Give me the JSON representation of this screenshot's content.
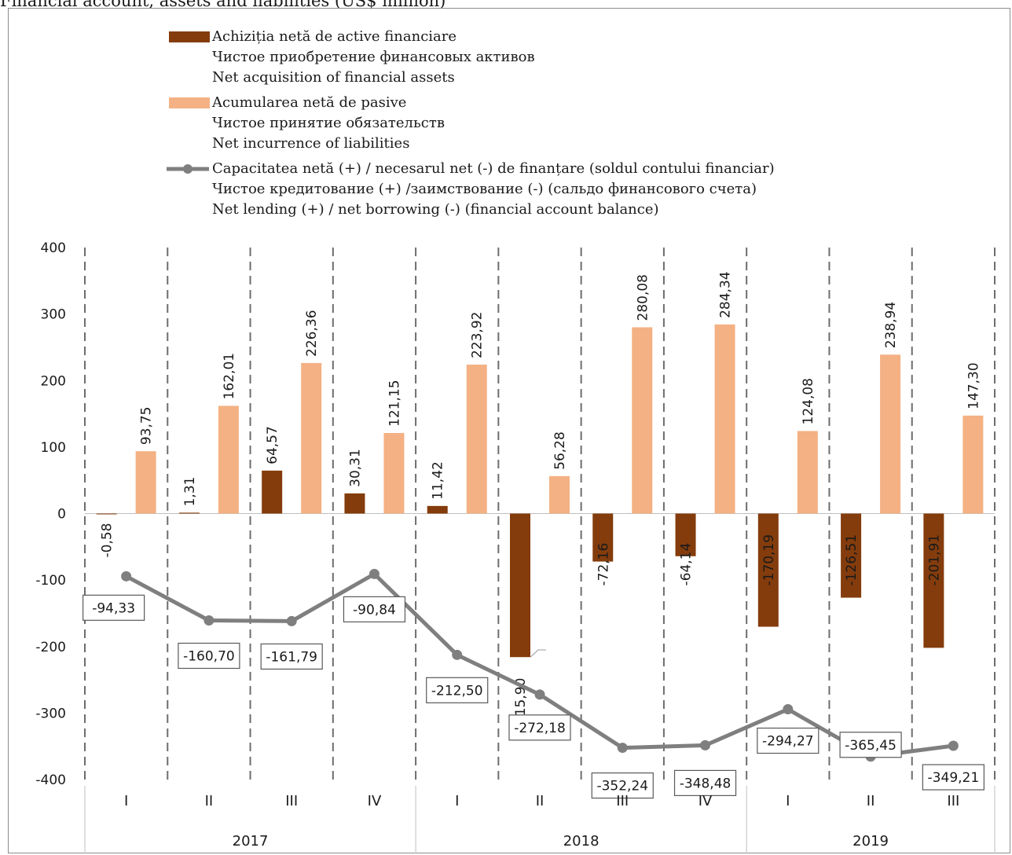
{
  "chart_data": {
    "type": "bar",
    "title": "Financial account, assets and liabilities (US$ million)",
    "ylim": [
      -400,
      400
    ],
    "yticks": [
      400,
      300,
      200,
      100,
      0,
      -100,
      -200,
      -300,
      -400
    ],
    "categories": [
      "I",
      "II",
      "III",
      "IV",
      "I",
      "II",
      "III",
      "IV",
      "I",
      "II",
      "III"
    ],
    "years": [
      {
        "label": "2017",
        "quarters": 4
      },
      {
        "label": "2018",
        "quarters": 4
      },
      {
        "label": "2019",
        "quarters": 3
      }
    ],
    "series": [
      {
        "name": "Achiziția netă de active financiare / Чистое приобретение финансовых активов / Net acquisition of financial assets",
        "kind": "bar",
        "color": "#843c0c",
        "values": [
          -0.58,
          1.31,
          64.57,
          30.31,
          11.42,
          -215.9,
          -72.16,
          -64.14,
          -170.19,
          -126.51,
          -201.91
        ],
        "labels": [
          "-0,58",
          "1,31",
          "64,57",
          "30,31",
          "11,42",
          "-215,90",
          "-72,16",
          "-64,14",
          "-170,19",
          "-126,51",
          "-201,91"
        ]
      },
      {
        "name": "Acumularea netă de pasive / Чистое принятие обязательств / Net incurrence of liabilities",
        "kind": "bar",
        "color": "#f4b183",
        "values": [
          93.75,
          162.01,
          226.36,
          121.15,
          223.92,
          56.28,
          280.08,
          284.34,
          124.08,
          238.94,
          147.3
        ],
        "labels": [
          "93,75",
          "162,01",
          "226,36",
          "121,15",
          "223,92",
          "56,28",
          "280,08",
          "284,34",
          "124,08",
          "238,94",
          "147,30"
        ]
      },
      {
        "name": "Capacitatea netă (+) / necesarul net (-) de finanțare (soldul contului financiar) / Чистое кредитование (+) /заимствование (-) (сальдо финансового счета) / Net lending (+) / net borrowing (-) (financial account balance)",
        "kind": "line",
        "color": "#7f7f7f",
        "values": [
          -94.33,
          -160.7,
          -161.79,
          -90.84,
          -212.5,
          -272.18,
          -352.24,
          -348.48,
          -294.27,
          -365.45,
          -349.21
        ],
        "labels": [
          "-94,33",
          "-160,70",
          "-161,79",
          "-90,84",
          "-212,50",
          "-272,18",
          "-352,24",
          "-348,48",
          "-294,27",
          "-365,45",
          "-349,21"
        ]
      }
    ],
    "legend": {
      "assets": [
        "Achiziția netă de active financiare",
        "Чистое приобретение финансовых активов",
        "Net acquisition of financial assets"
      ],
      "liabilities": [
        "Acumularea netă de pasive",
        "Чистое принятие обязательств",
        "Net incurrence of liabilities"
      ],
      "balance": [
        "Capacitatea netă (+) / necesarul net (-) de finanțare (soldul contului financiar)",
        "Чистое кредитование (+) /заимствование (-) (сальдо финансового счета)",
        "Net lending (+) / net borrowing (-) (financial account balance)"
      ]
    },
    "legend_position": "top-left",
    "grid": false
  }
}
